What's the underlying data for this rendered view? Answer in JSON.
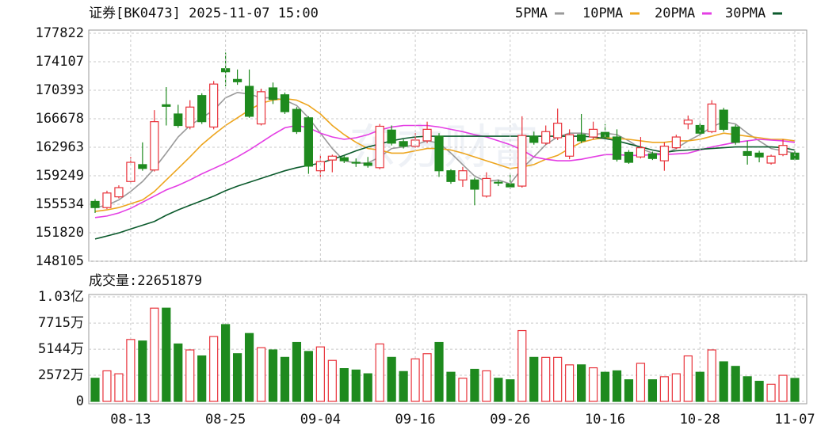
{
  "chart_data": [
    {
      "type": "candlestick",
      "title": "证券[BK0473] 2025-11-07 15:00",
      "watermark": "东方财富",
      "up_color": "#e8323a",
      "down_color": "#1e8a1e",
      "ylim": [
        148105,
        177822
      ],
      "yticks": [
        148105,
        151820,
        155534,
        159249,
        162963,
        166678,
        170393,
        174107,
        177822
      ],
      "grid": true,
      "open": [
        155900,
        155100,
        156500,
        158500,
        160700,
        160000,
        168500,
        167300,
        165600,
        169700,
        165600,
        173200,
        171800,
        170900,
        166000,
        170700,
        169800,
        167900,
        166800,
        159900,
        161300,
        161600,
        161000,
        160900,
        160300,
        165200,
        163700,
        163100,
        163800,
        164400,
        159900,
        158700,
        158700,
        156600,
        158400,
        158200,
        157900,
        164400,
        163500,
        164200,
        161800,
        164600,
        164300,
        164900,
        164300,
        162300,
        161700,
        162100,
        161200,
        162900,
        166000,
        165800,
        165000,
        167800,
        165600,
        162400,
        162200,
        160900,
        162000,
        162200
      ],
      "close": [
        155100,
        157000,
        157700,
        161000,
        160200,
        166300,
        168300,
        165800,
        168200,
        166300,
        171200,
        172800,
        171500,
        167000,
        170200,
        169200,
        167600,
        165000,
        160500,
        161100,
        161800,
        161200,
        160900,
        160600,
        165700,
        163500,
        163100,
        163900,
        165300,
        159900,
        158500,
        159900,
        157500,
        158900,
        158300,
        157800,
        164500,
        163600,
        165000,
        166100,
        164600,
        163800,
        165300,
        164300,
        161400,
        161000,
        162900,
        161500,
        163100,
        164300,
        166500,
        164800,
        168600,
        165300,
        163600,
        161900,
        161700,
        161800,
        163200,
        161400
      ],
      "high": [
        156200,
        157300,
        158000,
        161700,
        163600,
        167800,
        170800,
        168500,
        169100,
        170000,
        171600,
        175300,
        173100,
        173100,
        170600,
        171400,
        170100,
        168200,
        167000,
        161900,
        162000,
        161900,
        161500,
        161700,
        166000,
        165800,
        164000,
        164800,
        166300,
        164800,
        160100,
        160400,
        159000,
        159700,
        158700,
        159400,
        167000,
        165000,
        165800,
        168000,
        165300,
        167300,
        166300,
        166000,
        165300,
        162600,
        164300,
        162400,
        163600,
        164600,
        167100,
        166100,
        169100,
        168100,
        165900,
        163800,
        162500,
        162000,
        164000,
        162500
      ],
      "low": [
        154400,
        154900,
        156300,
        158300,
        159900,
        159800,
        165800,
        165500,
        165300,
        166000,
        165300,
        170900,
        171100,
        166800,
        165800,
        168600,
        167300,
        164700,
        159500,
        159100,
        159700,
        160900,
        160400,
        160300,
        160100,
        163200,
        162800,
        162900,
        163500,
        159100,
        158200,
        157800,
        155400,
        156400,
        157900,
        157500,
        157700,
        163300,
        163300,
        163900,
        161400,
        163500,
        164000,
        164000,
        161100,
        160800,
        161500,
        161300,
        159900,
        162700,
        165300,
        164500,
        164800,
        165000,
        163300,
        160700,
        161000,
        160700,
        161800,
        161200
      ],
      "series": [
        {
          "name": "5PMA",
          "color": "#9a9a9a",
          "values": [
            155100,
            155400,
            156100,
            157200,
            158500,
            160200,
            162200,
            164300,
            165800,
            166800,
            167800,
            169400,
            170100,
            169900,
            169400,
            169400,
            169100,
            168400,
            166800,
            164800,
            162800,
            161200,
            160900,
            160900,
            161700,
            162800,
            163000,
            163300,
            163800,
            163500,
            162200,
            160700,
            159200,
            158500,
            158700,
            158200,
            160200,
            161700,
            163300,
            164300,
            164800,
            164800,
            164600,
            164800,
            164600,
            163800,
            162800,
            162200,
            162100,
            162800,
            163800,
            164600,
            165600,
            166300,
            166000,
            164800,
            163800,
            162800,
            162500,
            162200
          ]
        },
        {
          "name": "10PMA",
          "color": "#eda51e",
          "values": [
            154600,
            154800,
            155100,
            155600,
            156100,
            157200,
            158700,
            160200,
            161700,
            163300,
            164600,
            165800,
            166800,
            167800,
            168700,
            169100,
            169300,
            169100,
            168400,
            167300,
            165800,
            164600,
            163600,
            162800,
            162600,
            162200,
            162200,
            162500,
            162800,
            162800,
            162600,
            162200,
            161700,
            161200,
            160700,
            160200,
            160400,
            160700,
            161400,
            161900,
            162800,
            163600,
            164000,
            164200,
            164100,
            164000,
            163800,
            163600,
            163600,
            163800,
            163800,
            164000,
            164400,
            164800,
            164600,
            164400,
            164200,
            164000,
            164000,
            163800
          ]
        },
        {
          "name": "20PMA",
          "color": "#e43ee4",
          "values": [
            153800,
            154000,
            154400,
            155000,
            155800,
            156600,
            157400,
            158000,
            158700,
            159500,
            160200,
            160900,
            161700,
            162600,
            163600,
            164600,
            165500,
            165800,
            165500,
            164800,
            164300,
            164000,
            164200,
            164600,
            165200,
            165600,
            165800,
            165800,
            165800,
            165600,
            165300,
            165000,
            164600,
            164300,
            163800,
            163300,
            162600,
            161700,
            161400,
            161200,
            161200,
            161400,
            161700,
            162000,
            162000,
            161900,
            161900,
            162000,
            162000,
            162100,
            162200,
            162600,
            163000,
            163300,
            163600,
            163800,
            164000,
            163900,
            163800,
            163600
          ]
        },
        {
          "name": "30PMA",
          "color": "#0b5a2c",
          "values": [
            151000,
            151400,
            151800,
            152300,
            152800,
            153300,
            154100,
            154800,
            155400,
            156000,
            156600,
            157300,
            157900,
            158400,
            158900,
            159400,
            159900,
            160300,
            160600,
            160900,
            161400,
            161900,
            162500,
            163000,
            163400,
            163800,
            164100,
            164300,
            164400,
            164400,
            164400,
            164400,
            164400,
            164400,
            164400,
            164400,
            164400,
            164400,
            164400,
            164400,
            164400,
            164400,
            164300,
            164100,
            163800,
            163400,
            163000,
            162600,
            162300,
            162500,
            162600,
            162700,
            162800,
            162900,
            163000,
            163000,
            163000,
            163000,
            162900,
            162600
          ]
        }
      ]
    },
    {
      "type": "bar",
      "title": "成交量:22651879",
      "categories": [
        null,
        null,
        null,
        "08-13",
        null,
        null,
        null,
        null,
        null,
        null,
        null,
        "08-25",
        null,
        null,
        null,
        null,
        null,
        null,
        null,
        "09-04",
        null,
        null,
        null,
        null,
        null,
        null,
        null,
        "09-16",
        null,
        null,
        null,
        null,
        null,
        null,
        null,
        "09-26",
        null,
        null,
        null,
        null,
        null,
        null,
        null,
        "10-16",
        null,
        null,
        null,
        null,
        null,
        null,
        null,
        "10-28",
        null,
        null,
        null,
        null,
        null,
        null,
        null,
        "11-07"
      ],
      "values": [
        2280,
        3010,
        2720,
        6100,
        5950,
        9190,
        9190,
        5660,
        5070,
        4480,
        6390,
        7570,
        4700,
        6690,
        5290,
        5070,
        4340,
        5810,
        4920,
        5370,
        4040,
        3230,
        3090,
        2720,
        5660,
        4340,
        2940,
        4190,
        4700,
        5810,
        2870,
        2280,
        3160,
        3010,
        2280,
        2130,
        6980,
        4340,
        4340,
        4340,
        3600,
        3600,
        3310,
        2870,
        3010,
        2130,
        3750,
        2130,
        2430,
        2720,
        4480,
        2870,
        5070,
        3900,
        3450,
        2430,
        1980,
        1690,
        2570,
        2265
      ],
      "ylim": [
        0,
        10300
      ],
      "yticks": [
        0,
        {
          "value": 2572,
          "label": "2572万"
        },
        {
          "value": 5144,
          "label": "5144万"
        },
        {
          "value": 7715,
          "label": "7715万"
        },
        {
          "value": 10300,
          "label": "1.03亿"
        }
      ],
      "grid": true
    }
  ]
}
